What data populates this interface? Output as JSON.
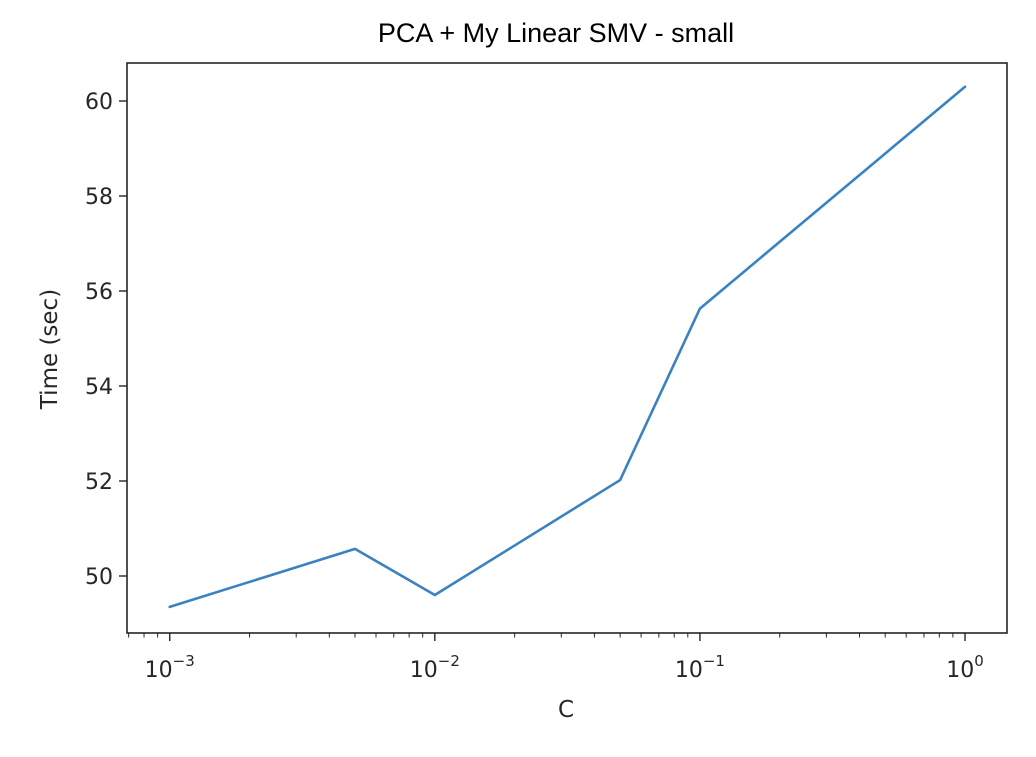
{
  "chart_data": {
    "type": "line",
    "title": "PCA + My Linear SMV - small",
    "xlabel": "C",
    "ylabel": "Time (sec)",
    "xscale": "log",
    "xlim": [
      0.00069,
      1.44
    ],
    "ylim": [
      48.8,
      60.8
    ],
    "grid": false,
    "x_ticks": [
      {
        "value": 0.001,
        "base": "10",
        "exp": "−3"
      },
      {
        "value": 0.01,
        "base": "10",
        "exp": "−2"
      },
      {
        "value": 0.1,
        "base": "10",
        "exp": "−1"
      },
      {
        "value": 1,
        "base": "10",
        "exp": "0"
      }
    ],
    "y_ticks": [
      50,
      52,
      54,
      56,
      58,
      60
    ],
    "series": [
      {
        "color": "#3b82c0",
        "x": [
          0.001,
          0.005,
          0.01,
          0.05,
          0.1,
          1
        ],
        "y": [
          49.35,
          50.57,
          49.6,
          52.02,
          55.63,
          60.3
        ]
      }
    ]
  }
}
